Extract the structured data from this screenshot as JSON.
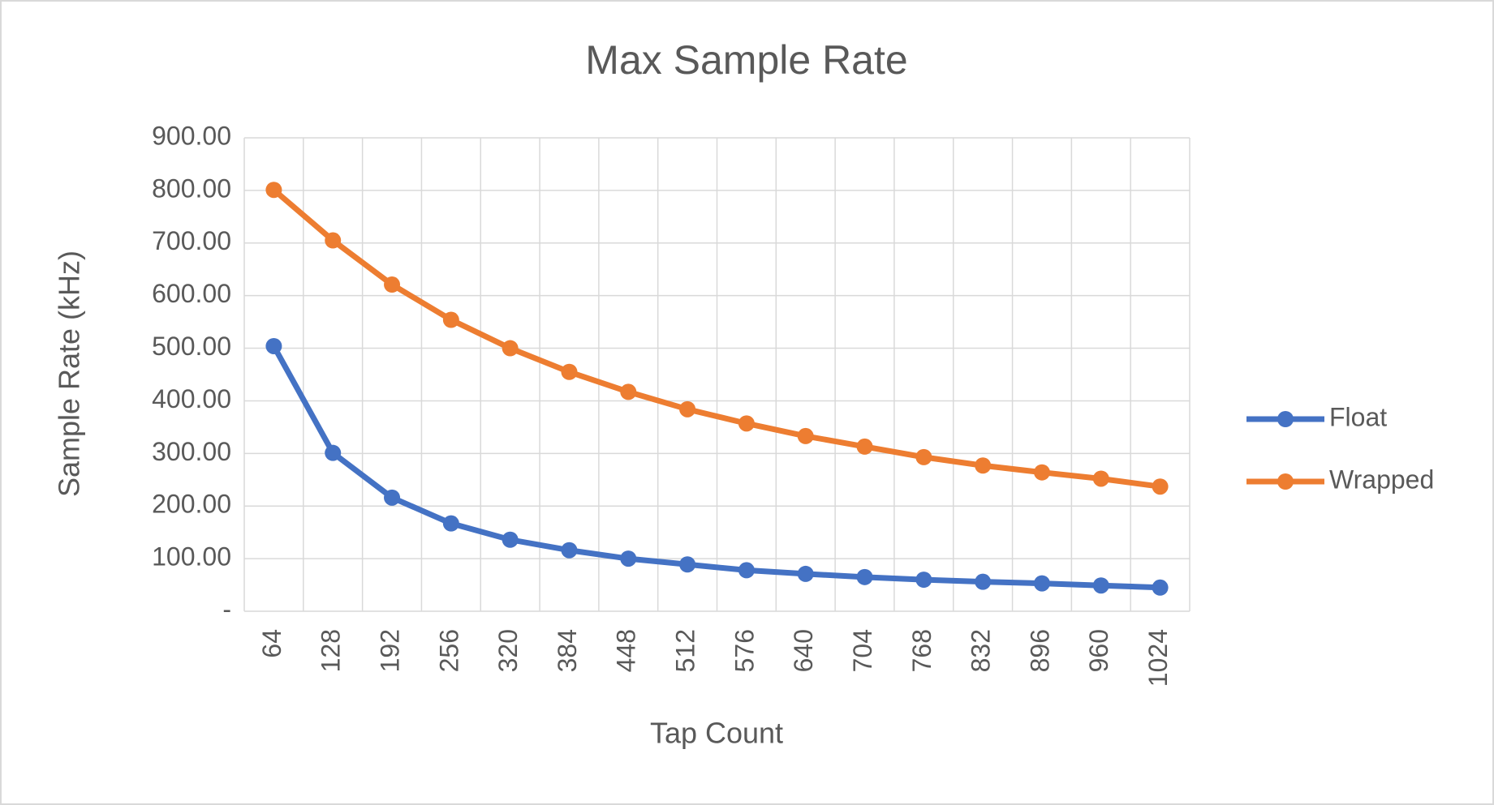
{
  "chart_data": {
    "type": "line",
    "title": "Max Sample Rate",
    "x_label": "Tap Count",
    "y_label": "Sample Rate (kHz)",
    "categories": [
      "64",
      "128",
      "192",
      "256",
      "320",
      "384",
      "448",
      "512",
      "576",
      "640",
      "704",
      "768",
      "832",
      "896",
      "960",
      "1024"
    ],
    "series": [
      {
        "name": "Float",
        "color": "#4472c4",
        "values": [
          504,
          301,
          216,
          167,
          136,
          116,
          100,
          89,
          78,
          71,
          65,
          60,
          56,
          53,
          49,
          45
        ]
      },
      {
        "name": "Wrapped",
        "color": "#ed7d31",
        "values": [
          801,
          705,
          621,
          554,
          500,
          455,
          417,
          384,
          357,
          333,
          313,
          293,
          277,
          264,
          252,
          237
        ]
      }
    ],
    "ylim": [
      0,
      900
    ],
    "yticks": [
      {
        "value": 0,
        "label": "-"
      },
      {
        "value": 100,
        "label": "100.00"
      },
      {
        "value": 200,
        "label": "200.00"
      },
      {
        "value": 300,
        "label": "300.00"
      },
      {
        "value": 400,
        "label": "400.00"
      },
      {
        "value": 500,
        "label": "500.00"
      },
      {
        "value": 600,
        "label": "600.00"
      },
      {
        "value": 700,
        "label": "700.00"
      },
      {
        "value": 800,
        "label": "800.00"
      },
      {
        "value": 900,
        "label": "900.00"
      }
    ],
    "grid": true,
    "legend": "right"
  }
}
